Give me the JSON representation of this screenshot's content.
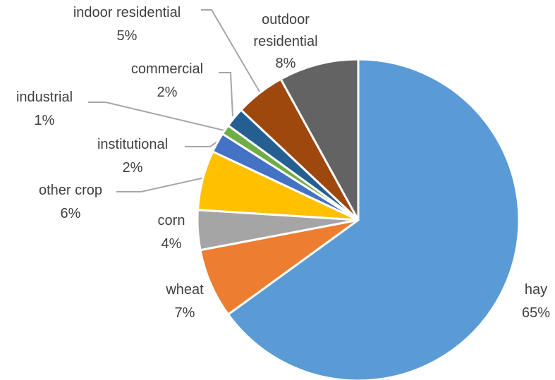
{
  "chart_data": {
    "type": "pie",
    "categories": [
      "hay",
      "wheat",
      "corn",
      "other crop",
      "institutional",
      "industrial",
      "commercial",
      "indoor residential",
      "outdoor residential"
    ],
    "values": [
      65,
      7,
      4,
      6,
      2,
      1,
      2,
      5,
      8
    ],
    "value_labels": [
      "65%",
      "7%",
      "4%",
      "6%",
      "2%",
      "1%",
      "2%",
      "5%",
      "8%"
    ],
    "colors": [
      "#5b9bd5",
      "#ed7d31",
      "#a5a5a5",
      "#ffc000",
      "#4472c4",
      "#70ad47",
      "#255e91",
      "#9e480e",
      "#636363"
    ]
  }
}
